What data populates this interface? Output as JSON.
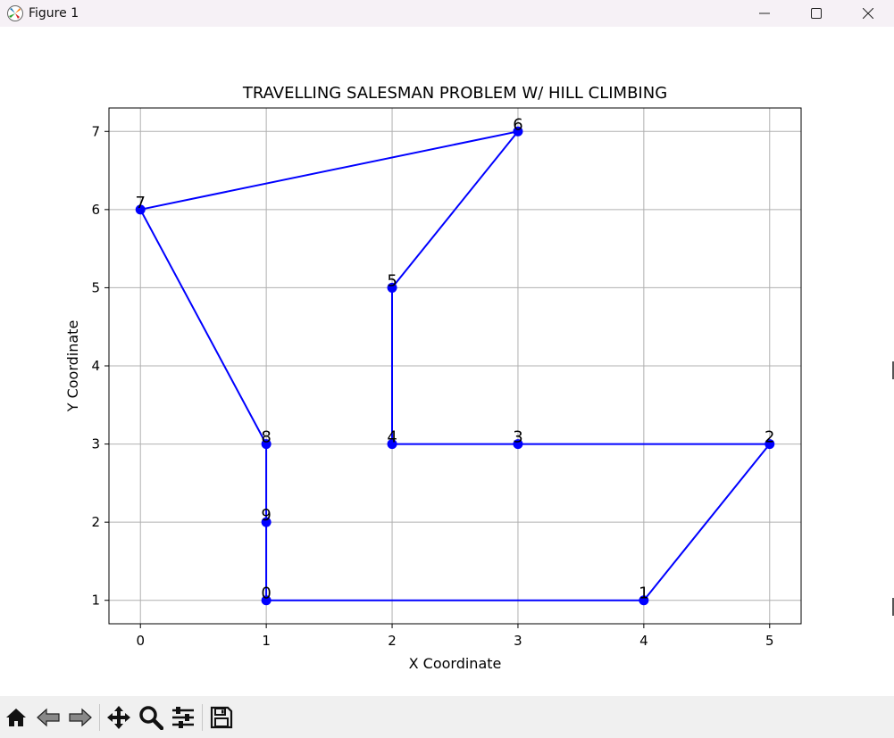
{
  "window": {
    "title": "Figure 1",
    "controls": [
      "minimize-icon",
      "maximize-icon",
      "close-icon"
    ]
  },
  "toolbar": {
    "icons": [
      "home-icon",
      "back-icon",
      "forward-icon",
      "pan-icon",
      "zoom-icon",
      "configure-subplots-icon",
      "save-icon"
    ]
  },
  "colors": {
    "line": "#0000ff",
    "grid": "#b0b0b0",
    "titlebar": "#f6f1f6",
    "toolbar": "#f0f0f0"
  },
  "chart_data": {
    "type": "line",
    "title": "TRAVELLING SALESMAN PROBLEM W/ HILL CLIMBING",
    "xlabel": "X Coordinate",
    "ylabel": "Y Coordinate",
    "xlim": [
      -0.25,
      5.25
    ],
    "ylim": [
      0.7,
      7.3
    ],
    "xticks": [
      "0",
      "1",
      "2",
      "3",
      "4",
      "5"
    ],
    "yticks": [
      "1",
      "2",
      "3",
      "4",
      "5",
      "6",
      "7"
    ],
    "grid": true,
    "points": [
      {
        "label": "0",
        "x": 1,
        "y": 1
      },
      {
        "label": "1",
        "x": 4,
        "y": 1
      },
      {
        "label": "2",
        "x": 5,
        "y": 3
      },
      {
        "label": "3",
        "x": 3,
        "y": 3
      },
      {
        "label": "4",
        "x": 2,
        "y": 3
      },
      {
        "label": "5",
        "x": 2,
        "y": 5
      },
      {
        "label": "6",
        "x": 3,
        "y": 7
      },
      {
        "label": "7",
        "x": 0,
        "y": 6
      },
      {
        "label": "8",
        "x": 1,
        "y": 3
      },
      {
        "label": "9",
        "x": 1,
        "y": 2
      }
    ],
    "route": [
      "0",
      "1",
      "2",
      "3",
      "4",
      "5",
      "6",
      "7",
      "8",
      "9",
      "0"
    ]
  }
}
